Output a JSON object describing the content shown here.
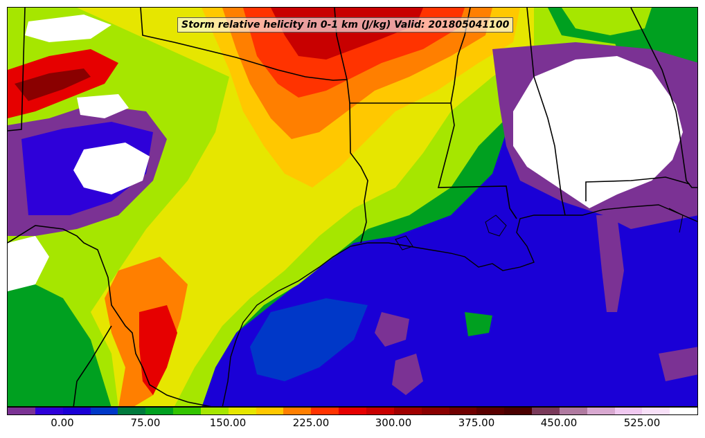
{
  "title": "Storm relative helicity in 0-1 km (J/kg) Valid: 201805041100",
  "colorbar": {
    "colors": [
      "#7b3294",
      "#2e00d9",
      "#1a00d6",
      "#0038c8",
      "#007a3d",
      "#00a020",
      "#33c400",
      "#a6e600",
      "#e6e600",
      "#ffc800",
      "#ff7f00",
      "#ff3300",
      "#e60000",
      "#c80000",
      "#a00000",
      "#8a0000",
      "#700000",
      "#5a0000",
      "#4a0000",
      "#7a3a5a",
      "#b07aa0",
      "#d8a8d0",
      "#f0c8f0",
      "#f8e0f8",
      "#ffffff"
    ],
    "tick_labels": [
      "0.00",
      "75.00",
      "150.00",
      "225.00",
      "300.00",
      "375.00",
      "450.00",
      "525.00"
    ]
  },
  "palette": {
    "ocean": "#1a00d6",
    "coast_line": "#000000",
    "border_line": "#000000"
  }
}
